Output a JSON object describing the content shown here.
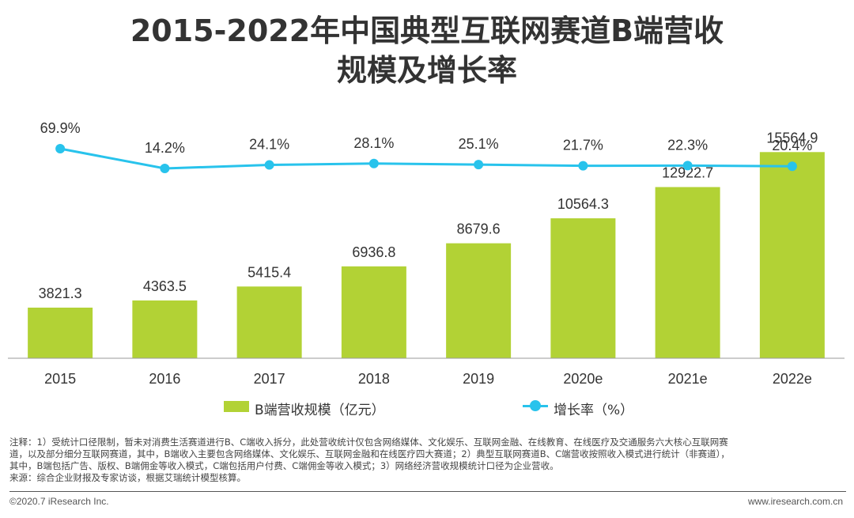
{
  "title": {
    "line1": "2015-2022年中国典型互联网赛道B端营收",
    "line2": "规模及增长率"
  },
  "chart_data": {
    "type": "bar",
    "categories": [
      "2015",
      "2016",
      "2017",
      "2018",
      "2019",
      "2020e",
      "2021e",
      "2022e"
    ],
    "series": [
      {
        "name": "B端营收规模（亿元）",
        "type": "bar",
        "values": [
          3821.3,
          4363.5,
          5415.4,
          6936.8,
          8679.6,
          10564.3,
          12922.7,
          15564.9
        ],
        "labels": [
          "3821.3",
          "4363.5",
          "5415.4",
          "6936.8",
          "8679.6",
          "10564.3",
          "12922.7",
          "15564.9"
        ]
      },
      {
        "name": "增长率（%）",
        "type": "line",
        "values": [
          69.9,
          14.2,
          24.1,
          28.1,
          25.1,
          21.7,
          22.3,
          20.4
        ],
        "labels": [
          "69.9%",
          "14.2%",
          "24.1%",
          "28.1%",
          "25.1%",
          "21.7%",
          "22.3%",
          "20.4%"
        ]
      }
    ],
    "bar_axis_range": [
      0,
      16000
    ],
    "legend_position": "bottom",
    "colors": {
      "bar": "#b2d235",
      "line": "#28c3ec",
      "axis": "#999999"
    }
  },
  "legend": {
    "bar_label": "B端营收规模（亿元）",
    "line_label": "增长率（%）"
  },
  "notes": {
    "line1": "注释：1）受统计口径限制，暂未对消费生活赛道进行B、C端收入拆分，此处营收统计仅包含网络媒体、文化娱乐、互联网金融、在线教育、在线医疗及交通服务六大核心互联网赛",
    "line2": "道，以及部分细分互联网赛道，其中，B端收入主要包含网络媒体、文化娱乐、互联网金融和在线医疗四大赛道；2）典型互联网赛道B、C端营收按照收入模式进行统计（非赛道），",
    "line3": "其中，B端包括广告、版权、B端佣金等收入模式，C端包括用户付费、C端佣金等收入模式；3）网络经济营收规模统计口径为企业营收。",
    "source": "来源：综合企业财报及专家访谈，根据艾瑞统计模型核算。"
  },
  "footer": {
    "copyright": "©2020.7 iResearch Inc.",
    "website": "www.iresearch.com.cn"
  }
}
